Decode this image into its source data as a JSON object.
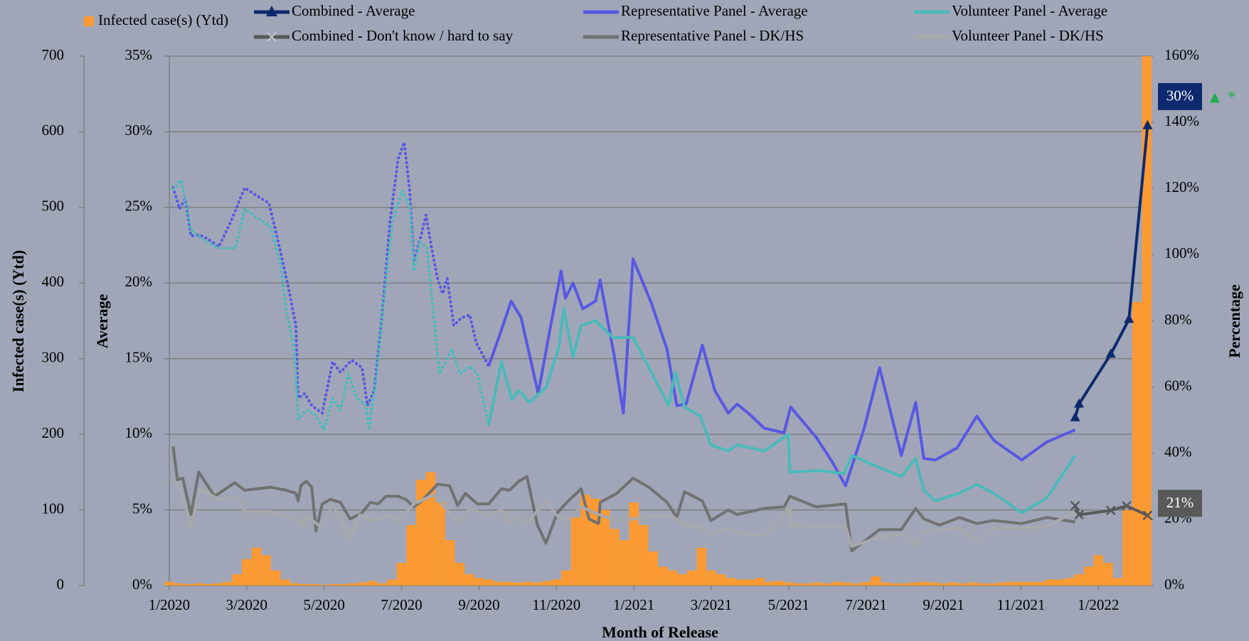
{
  "chart_data": {
    "type": "line",
    "x_label": "Month of Release",
    "y_label": "Average",
    "y2_label": "Percentage",
    "cases_label": "Infected case(s) (Ytd)",
    "xlim": [
      0,
      25.3
    ],
    "xticks": [
      {
        "value": 0,
        "label": "1/2020"
      },
      {
        "value": 2,
        "label": "3/2020"
      },
      {
        "value": 4,
        "label": "5/2020"
      },
      {
        "value": 6,
        "label": "7/2020"
      },
      {
        "value": 8,
        "label": "9/2020"
      },
      {
        "value": 10,
        "label": "11/2020"
      },
      {
        "value": 12,
        "label": "1/2021"
      },
      {
        "value": 14,
        "label": "3/2021"
      },
      {
        "value": 16,
        "label": "5/2021"
      },
      {
        "value": 18,
        "label": "7/2021"
      },
      {
        "value": 20,
        "label": "9/2021"
      },
      {
        "value": 22,
        "label": "11/2021"
      },
      {
        "value": 24,
        "label": "1/2022"
      }
    ],
    "ylim": [
      0,
      35
    ],
    "yticks": [
      {
        "value": 0,
        "label": "0%"
      },
      {
        "value": 5,
        "label": "5%"
      },
      {
        "value": 10,
        "label": "10%"
      },
      {
        "value": 15,
        "label": "15%"
      },
      {
        "value": 20,
        "label": "20%"
      },
      {
        "value": 25,
        "label": "25%"
      },
      {
        "value": 30,
        "label": "30%"
      },
      {
        "value": 35,
        "label": "35%"
      }
    ],
    "y2lim": [
      0,
      160
    ],
    "y2ticks": [
      {
        "value": 0,
        "label": "0%"
      },
      {
        "value": 20,
        "label": "20%"
      },
      {
        "value": 40,
        "label": "40%"
      },
      {
        "value": 60,
        "label": "60%"
      },
      {
        "value": 80,
        "label": "80%"
      },
      {
        "value": 100,
        "label": "100%"
      },
      {
        "value": 120,
        "label": "120%"
      },
      {
        "value": 140,
        "label": "140%"
      },
      {
        "value": 160,
        "label": "160%"
      }
    ],
    "cases_ylim": [
      0,
      700
    ],
    "cases_yticks": [
      0,
      100,
      200,
      300,
      400,
      500,
      600,
      700
    ],
    "grid": true,
    "annotation": "▲ *",
    "annotation_color": "#1fae4f",
    "series": [
      {
        "name": "Infected case(s) (Ytd)",
        "type": "bar",
        "axis": "cases",
        "color": "#fb9a33",
        "x": [
          0,
          0.25,
          0.5,
          0.75,
          1,
          1.25,
          1.5,
          1.75,
          2,
          2.25,
          2.5,
          2.75,
          3,
          3.25,
          3.5,
          3.75,
          4,
          4.25,
          4.5,
          4.75,
          5,
          5.25,
          5.5,
          5.75,
          6,
          6.25,
          6.5,
          6.75,
          7,
          7.25,
          7.5,
          7.75,
          8,
          8.25,
          8.5,
          8.75,
          9,
          9.25,
          9.5,
          9.75,
          10,
          10.25,
          10.5,
          10.75,
          11,
          11.25,
          11.5,
          11.75,
          12,
          12.25,
          12.5,
          12.75,
          13,
          13.25,
          13.5,
          13.75,
          14,
          14.25,
          14.5,
          14.75,
          15,
          15.25,
          15.5,
          15.75,
          16,
          16.25,
          16.5,
          16.75,
          17,
          17.25,
          17.5,
          17.75,
          18,
          18.25,
          18.5,
          18.75,
          19,
          19.25,
          19.5,
          19.75,
          20,
          20.25,
          20.5,
          20.75,
          21,
          21.25,
          21.5,
          21.75,
          22,
          22.25,
          22.5,
          22.75,
          23,
          23.25,
          23.5,
          23.75,
          24,
          24.25,
          24.5,
          24.75,
          25,
          25.25
        ],
        "values": [
          5,
          3,
          2,
          3,
          2,
          3,
          5,
          15,
          35,
          50,
          40,
          20,
          8,
          3,
          2,
          2,
          1,
          2,
          2,
          3,
          4,
          6,
          3,
          8,
          30,
          80,
          140,
          150,
          110,
          60,
          30,
          15,
          10,
          8,
          5,
          5,
          4,
          5,
          4,
          6,
          8,
          20,
          90,
          120,
          115,
          100,
          75,
          60,
          110,
          80,
          45,
          25,
          20,
          15,
          20,
          50,
          20,
          15,
          10,
          8,
          8,
          10,
          5,
          6,
          4,
          3,
          3,
          4,
          3,
          5,
          4,
          3,
          5,
          12,
          4,
          3,
          3,
          4,
          5,
          4,
          3,
          4,
          3,
          4,
          3,
          3,
          4,
          5,
          5,
          5,
          5,
          8,
          8,
          10,
          15,
          25,
          40,
          30,
          10,
          100,
          375,
          700
        ]
      },
      {
        "name": "Combined - Average",
        "color": "#0e2a6e",
        "marker": "triangle",
        "x": [
          23.4,
          23.5,
          24.32,
          24.79,
          25.27
        ],
        "values": [
          11.1,
          12.0,
          15.3,
          17.6,
          30.4
        ],
        "value_labels": [
          null,
          null,
          null,
          null,
          "30%"
        ]
      },
      {
        "name": "Combined - Don't know / hard to say",
        "color": "#595959",
        "marker": "x",
        "axis": "y2",
        "x": [
          23.4,
          23.5,
          24.32,
          24.73,
          25.27
        ],
        "values": [
          24.1,
          21.4,
          22.7,
          24.1,
          21.2
        ],
        "value_labels": [
          null,
          null,
          null,
          null,
          "21%"
        ]
      },
      {
        "name": "Representative Panel - Average",
        "color": "#5858e2",
        "x": [
          8.25,
          8.54,
          8.83,
          9.09,
          9.53,
          9.81,
          10.12,
          10.23,
          10.43,
          10.68,
          11.01,
          11.13,
          11.5,
          11.73,
          11.98,
          12.45,
          12.86,
          13.11,
          13.35,
          13.77,
          14.09,
          14.44,
          14.67,
          15.0,
          15.37,
          15.88,
          16.05,
          16.71,
          17.12,
          17.47,
          17.94,
          18.35,
          18.91,
          19.28,
          19.49,
          19.79,
          20.35,
          20.86,
          21.3,
          22.02,
          22.67,
          23.4
        ],
        "values": [
          14.5,
          16.6,
          18.8,
          17.7,
          12.7,
          16.6,
          20.8,
          19.0,
          20.0,
          18.3,
          18.8,
          20.2,
          15.1,
          11.4,
          21.6,
          18.7,
          15.6,
          11.9,
          12.0,
          15.9,
          12.9,
          11.4,
          12.0,
          11.3,
          10.4,
          10.1,
          11.8,
          9.8,
          8.2,
          6.6,
          10.3,
          14.4,
          8.6,
          12.1,
          8.4,
          8.3,
          9.1,
          11.2,
          9.6,
          8.3,
          9.5,
          10.3
        ]
      },
      {
        "name": "Representative Panel - DK/HS",
        "color": "#717171",
        "x": [
          0.1,
          0.21,
          0.35,
          0.56,
          0.76,
          1.17,
          1.69,
          1.95,
          2.61,
          3.02,
          3.27,
          3.33,
          3.4,
          3.54,
          3.68,
          3.79,
          3.95,
          4.16,
          4.42,
          4.67,
          4.98,
          5.19,
          5.39,
          5.6,
          5.91,
          6.11,
          6.32,
          6.52,
          6.93,
          7.24,
          7.45,
          7.65,
          7.96,
          8.25,
          8.58,
          8.79,
          9.03,
          9.24,
          9.51,
          9.73,
          10.02,
          10.23,
          10.64,
          10.84,
          11.09,
          11.13,
          11.56,
          11.98,
          12.39,
          12.86,
          13.11,
          13.31,
          13.77,
          13.99,
          14.44,
          14.67,
          15.37,
          15.88,
          16.03,
          16.71,
          17.47,
          17.63,
          18.35,
          18.91,
          19.28,
          19.49,
          19.9,
          20.41,
          20.86,
          21.3,
          22.02,
          22.67,
          23.4
        ],
        "values": [
          9.2,
          7.0,
          7.1,
          4.7,
          7.5,
          5.9,
          6.8,
          6.3,
          6.5,
          6.3,
          6.1,
          5.6,
          6.6,
          6.9,
          6.5,
          3.6,
          5.4,
          5.7,
          5.5,
          4.4,
          4.8,
          5.5,
          5.4,
          5.9,
          5.9,
          5.7,
          5.2,
          5.6,
          6.7,
          6.6,
          5.3,
          6.1,
          5.4,
          5.4,
          6.4,
          6.3,
          6.9,
          7.2,
          4.0,
          2.8,
          4.8,
          5.4,
          6.4,
          4.4,
          4.1,
          5.5,
          6.1,
          7.1,
          6.5,
          5.5,
          4.5,
          6.2,
          5.6,
          4.3,
          5.0,
          4.7,
          5.1,
          5.2,
          5.9,
          5.2,
          5.4,
          2.3,
          3.7,
          3.7,
          5.1,
          4.4,
          4.0,
          4.5,
          4.1,
          4.3,
          4.1,
          4.5,
          4.2
        ]
      },
      {
        "name": "Volunteer Panel - Average",
        "color": "#4cb9ba",
        "x": [
          8.25,
          8.58,
          8.85,
          9.03,
          9.3,
          9.73,
          10.06,
          10.19,
          10.43,
          10.64,
          11.01,
          11.46,
          11.98,
          12.9,
          13.07,
          13.31,
          13.72,
          13.99,
          14.44,
          14.67,
          15.37,
          15.99,
          16.03,
          16.81,
          17.43,
          17.63,
          18.35,
          18.91,
          19.28,
          19.49,
          19.79,
          20.41,
          20.86,
          21.3,
          22.02,
          22.67,
          23.4
        ],
        "values": [
          10.6,
          14.8,
          12.3,
          12.9,
          12.1,
          13.1,
          15.7,
          18.3,
          15.1,
          17.2,
          17.5,
          16.4,
          16.4,
          11.9,
          14.1,
          11.8,
          11.2,
          9.3,
          8.9,
          9.3,
          8.9,
          10.0,
          7.5,
          7.6,
          7.4,
          8.6,
          7.8,
          7.2,
          8.4,
          6.3,
          5.6,
          6.1,
          6.7,
          6.1,
          4.8,
          5.8,
          8.6
        ]
      },
      {
        "name": "Volunteer Panel - DK/HS",
        "color": "#a9a9ab",
        "x": [
          0.1,
          0.27,
          0.56,
          0.8,
          1.28,
          1.79,
          1.95,
          2.61,
          3.02,
          3.27,
          3.44,
          3.54,
          3.85,
          3.95,
          4.22,
          4.67,
          4.92,
          5.19,
          5.7,
          5.91,
          6.32,
          6.83,
          7.45,
          7.76,
          8.25,
          8.58,
          8.79,
          9.03,
          9.24,
          9.73,
          10.02,
          10.27,
          10.64,
          11.09,
          11.56,
          11.98,
          12.86,
          13.11,
          13.31,
          13.72,
          13.99,
          14.44,
          14.67,
          15.37,
          16.03,
          16.05,
          17.47,
          17.63,
          18.35,
          18.91,
          19.28,
          19.49,
          20.41,
          20.86,
          21.3,
          22.02,
          22.67,
          23.4
        ],
        "values": [
          6.9,
          6.5,
          3.9,
          6.4,
          5.7,
          5.8,
          4.9,
          4.9,
          4.5,
          4.5,
          4.0,
          4.6,
          4.0,
          3.9,
          5.4,
          3.1,
          4.7,
          4.3,
          4.6,
          4.3,
          5.4,
          6.0,
          4.2,
          5.1,
          4.6,
          5.0,
          4.2,
          4.6,
          4.1,
          5.6,
          4.6,
          4.3,
          5.2,
          4.7,
          4.3,
          4.4,
          4.7,
          4.4,
          4.0,
          3.9,
          3.4,
          3.8,
          3.5,
          3.3,
          5.2,
          4.0,
          3.9,
          2.6,
          3.2,
          3.4,
          2.7,
          3.6,
          3.8,
          2.9,
          3.8,
          3.8,
          3.9,
          4.9
        ]
      },
      {
        "color": "#5858e2",
        "line_style": "dotted",
        "x": [
          0.1,
          0.27,
          0.41,
          0.56,
          0.76,
          1.01,
          1.28,
          1.58,
          1.95,
          2.24,
          2.57,
          2.8,
          3.07,
          3.27,
          3.33,
          3.5,
          3.68,
          3.95,
          4.22,
          4.42,
          4.71,
          4.98,
          5.12,
          5.29,
          5.49,
          5.7,
          5.91,
          6.07,
          6.21,
          6.32,
          6.48,
          6.63,
          6.77,
          6.93,
          7.06,
          7.18,
          7.35,
          7.55,
          7.76,
          7.92,
          8.25
        ],
        "values": [
          26.3,
          24.9,
          25.6,
          23.1,
          23.2,
          22.9,
          22.4,
          24.0,
          26.3,
          25.8,
          25.3,
          22.9,
          19.8,
          17.2,
          12.4,
          12.7,
          11.9,
          11.4,
          14.8,
          14.1,
          14.9,
          14.4,
          11.9,
          12.9,
          17.7,
          24.0,
          28.2,
          29.3,
          26.1,
          21.4,
          22.9,
          24.5,
          22.4,
          20.3,
          19.3,
          20.3,
          17.2,
          17.7,
          17.9,
          16.1,
          14.5
        ]
      },
      {
        "color": "#4cb9ba",
        "line_style": "dotted",
        "x": [
          0.1,
          0.31,
          0.56,
          0.86,
          1.28,
          1.71,
          1.95,
          2.61,
          2.86,
          3.02,
          3.23,
          3.33,
          3.54,
          3.74,
          3.99,
          4.22,
          4.42,
          4.63,
          4.84,
          5.08,
          5.16,
          5.33,
          5.53,
          5.76,
          6.01,
          6.21,
          6.32,
          6.48,
          6.65,
          6.83,
          6.98,
          7.14,
          7.3,
          7.51,
          7.76,
          7.96,
          8.25
        ],
        "values": [
          26.2,
          26.8,
          23.5,
          22.9,
          22.3,
          22.3,
          24.9,
          23.7,
          21.4,
          18.2,
          15.6,
          11.0,
          11.6,
          11.4,
          10.3,
          12.4,
          11.6,
          14.0,
          12.4,
          11.9,
          10.3,
          13.5,
          18.7,
          24.0,
          26.1,
          25.1,
          20.8,
          22.7,
          22.4,
          17.9,
          14.0,
          14.8,
          15.6,
          14.0,
          14.5,
          14.0,
          10.6
        ]
      }
    ]
  }
}
